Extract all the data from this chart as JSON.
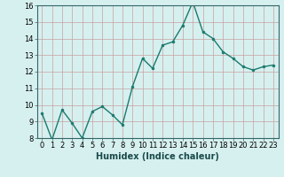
{
  "x": [
    0,
    1,
    2,
    3,
    4,
    5,
    6,
    7,
    8,
    9,
    10,
    11,
    12,
    13,
    14,
    15,
    16,
    17,
    18,
    19,
    20,
    21,
    22,
    23
  ],
  "y": [
    9.5,
    7.9,
    9.7,
    8.9,
    8.0,
    9.6,
    9.9,
    9.4,
    8.8,
    11.1,
    12.8,
    12.2,
    13.6,
    13.8,
    14.8,
    16.2,
    14.4,
    14.0,
    13.2,
    12.8,
    12.3,
    12.1,
    12.3,
    12.4
  ],
  "line_color": "#1a7a6e",
  "marker": "o",
  "marker_size": 2.0,
  "linewidth": 1.0,
  "xlabel": "Humidex (Indice chaleur)",
  "xlabel_fontsize": 7,
  "ylim": [
    8,
    16
  ],
  "xlim": [
    -0.5,
    23.5
  ],
  "yticks": [
    8,
    9,
    10,
    11,
    12,
    13,
    14,
    15,
    16
  ],
  "xticks": [
    0,
    1,
    2,
    3,
    4,
    5,
    6,
    7,
    8,
    9,
    10,
    11,
    12,
    13,
    14,
    15,
    16,
    17,
    18,
    19,
    20,
    21,
    22,
    23
  ],
  "background_color": "#d6f0ef",
  "grid_color": "#c8dedd",
  "tick_fontsize": 6.0
}
